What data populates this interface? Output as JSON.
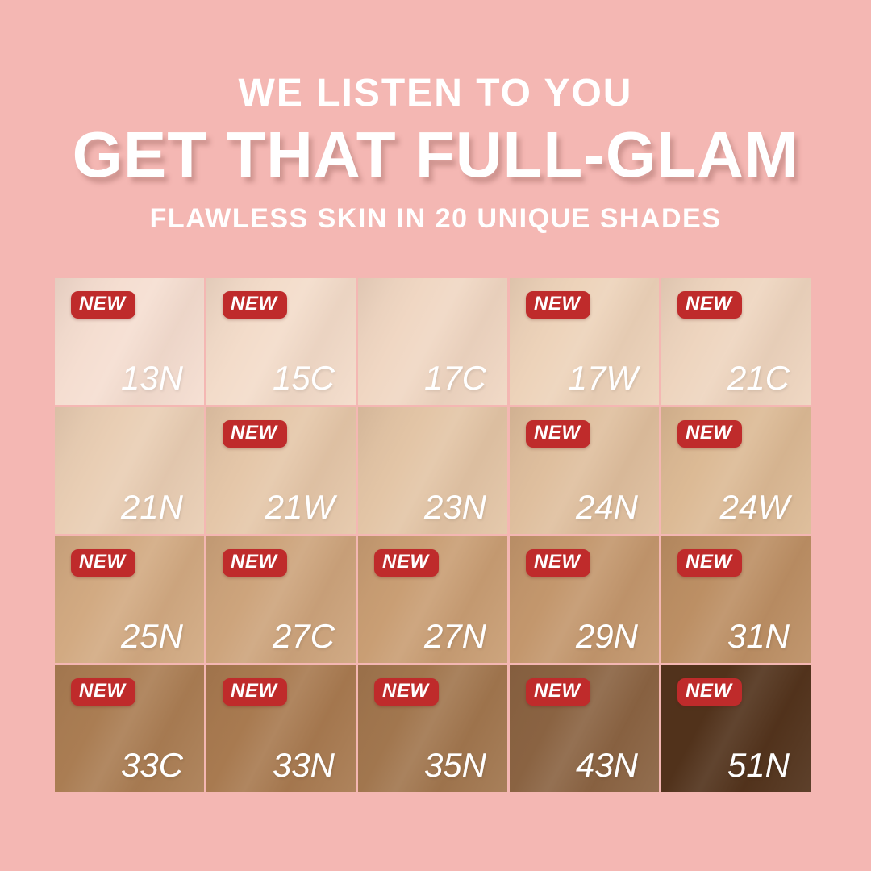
{
  "header": {
    "tagline": "WE LISTEN TO YOU",
    "title": "GET THAT FULL-GLAM",
    "subtitle": "FLAWLESS SKIN IN 20 UNIQUE SHADES"
  },
  "badge_label": "NEW",
  "colors": {
    "background": "#f4b7b3",
    "badge": "#bf2b2b",
    "badge_text": "#ffffff",
    "headline_text": "#ffffff",
    "shade_label_text": "#ffffff"
  },
  "shades": [
    {
      "code": "13N",
      "color": "#f5ded1",
      "new": true
    },
    {
      "code": "15C",
      "color": "#f3dcca",
      "new": true
    },
    {
      "code": "17C",
      "color": "#f0d7c3",
      "new": false
    },
    {
      "code": "17W",
      "color": "#edd3ba",
      "new": true
    },
    {
      "code": "21C",
      "color": "#eed5bf",
      "new": true
    },
    {
      "code": "21N",
      "color": "#e9ceb4",
      "new": false
    },
    {
      "code": "21W",
      "color": "#e5c7a9",
      "new": true
    },
    {
      "code": "23N",
      "color": "#e3c5a6",
      "new": false
    },
    {
      "code": "24N",
      "color": "#dfbf9e",
      "new": true
    },
    {
      "code": "24W",
      "color": "#dcba95",
      "new": true
    },
    {
      "code": "25N",
      "color": "#d2aa82",
      "new": true
    },
    {
      "code": "27C",
      "color": "#cda47c",
      "new": true
    },
    {
      "code": "27N",
      "color": "#c99e74",
      "new": true
    },
    {
      "code": "29N",
      "color": "#c3976d",
      "new": true
    },
    {
      "code": "31N",
      "color": "#bc8f64",
      "new": true
    },
    {
      "code": "33C",
      "color": "#aa7d53",
      "new": true
    },
    {
      "code": "33N",
      "color": "#a87a50",
      "new": true
    },
    {
      "code": "35N",
      "color": "#a1764e",
      "new": true
    },
    {
      "code": "43N",
      "color": "#8a6342",
      "new": true
    },
    {
      "code": "51N",
      "color": "#51321b",
      "new": true
    }
  ]
}
